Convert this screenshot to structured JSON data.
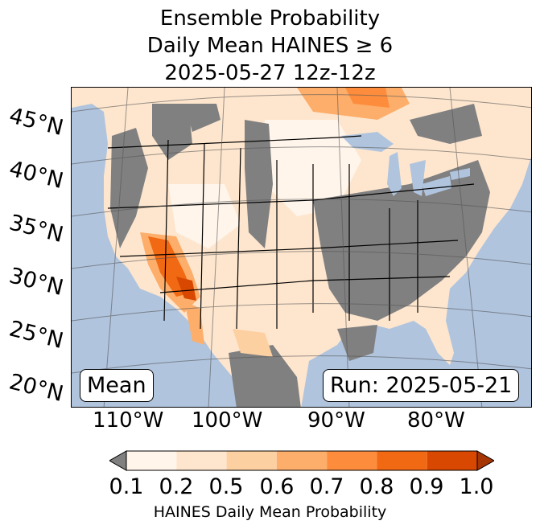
{
  "title": {
    "line1": "Ensemble Probability",
    "line2": "Daily Mean HAINES ≥ 6",
    "line3": "2025-05-27 12z-12z"
  },
  "map": {
    "ocean_color": "#b0c4de",
    "no_data_color": "#808080",
    "lat_labels": [
      "45°N",
      "40°N",
      "35°N",
      "30°N",
      "25°N",
      "20°N"
    ],
    "lon_labels": [
      "110°W",
      "100°W",
      "90°W",
      "80°W"
    ],
    "left_box": "Mean",
    "right_box": "Run: 2025-05-21"
  },
  "colorbar": {
    "ticks": [
      "0.1",
      "0.2",
      "0.5",
      "0.6",
      "0.7",
      "0.8",
      "0.9",
      "1.0"
    ],
    "label": "HAINES Daily Mean Probability",
    "under_color": "#808080",
    "colors": [
      "#fff5eb",
      "#fee6ce",
      "#fdd0a2",
      "#fdae6b",
      "#fd8d3c",
      "#f16913",
      "#d94801"
    ],
    "over_color": "#a63603"
  }
}
